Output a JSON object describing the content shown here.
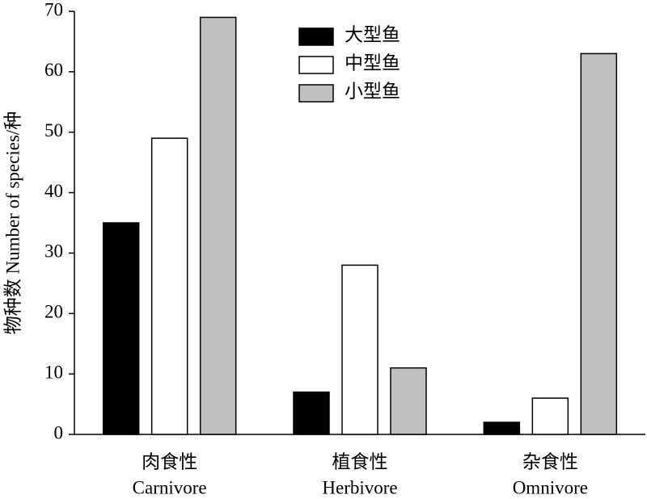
{
  "chart_data": {
    "type": "bar",
    "y_label": "物种数 Number of species/种",
    "categories": [
      "肉食性",
      "植食性",
      "杂食性"
    ],
    "category_subtitles": [
      "Carnivore",
      "Herbivore",
      "Omnivore"
    ],
    "series": [
      {
        "name": "大型鱼",
        "color": "#000000",
        "values": [
          35,
          7,
          2
        ]
      },
      {
        "name": "中型鱼",
        "color": "#ffffff",
        "values": [
          49,
          28,
          6
        ]
      },
      {
        "name": "小型鱼",
        "color": "#c0c0c0",
        "values": [
          69,
          11,
          63
        ]
      }
    ],
    "ylim": [
      0,
      70
    ],
    "yticks": [
      0,
      10,
      20,
      30,
      40,
      50,
      60,
      70
    ],
    "grid": false,
    "legend": "top"
  }
}
